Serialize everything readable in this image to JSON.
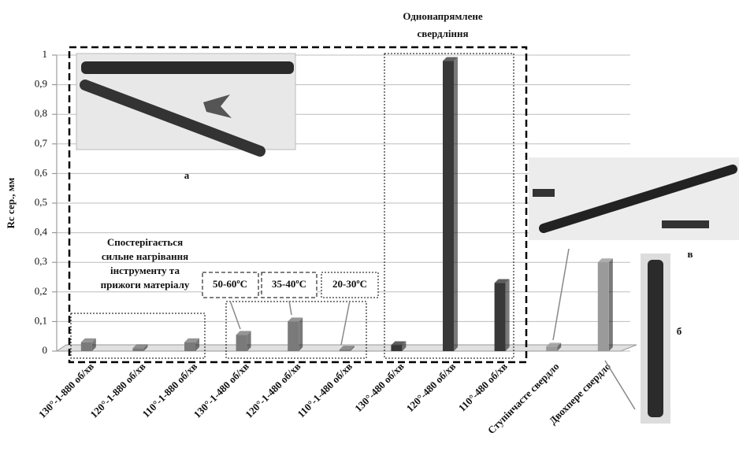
{
  "chart_data": {
    "type": "bar",
    "y_label": "Rc сер., мм",
    "categories": [
      "130°-1-880 об/хв",
      "120°-1-880 об/хв",
      "110°-1-880 об/хв",
      "130°-1-480 об/хв",
      "120°-1-480 об/хв",
      "110°-1-480 об/хв",
      "130°-480 об/хв",
      "120°-480 об/хв",
      "110°-480 об/хв",
      "Ступінчасте свердло",
      "Двохпере свердло"
    ],
    "values": [
      0.03,
      0.01,
      0.03,
      0.055,
      0.1,
      0.005,
      0.02,
      0.98,
      0.23,
      0.015,
      0.3
    ],
    "colors": [
      "#7a7a7a",
      "#7a7a7a",
      "#7a7a7a",
      "#7a7a7a",
      "#7a7a7a",
      "#7a7a7a",
      "#383838",
      "#383838",
      "#383838",
      "#9a9a9a",
      "#9a9a9a"
    ],
    "ylim": [
      0,
      1
    ],
    "yticks": [
      0,
      {
        "value": 0.1,
        "label": "0,1"
      },
      {
        "value": 0.2,
        "label": "0,2"
      },
      {
        "value": 0.3,
        "label": "0,3"
      },
      {
        "value": 0.4,
        "label": "0,4"
      },
      {
        "value": 0.5,
        "label": "0,5"
      },
      {
        "value": 0.6,
        "label": "0,6"
      },
      {
        "value": 0.7,
        "label": "0,7"
      },
      {
        "value": 0.8,
        "label": "0,8"
      },
      {
        "value": 0.9,
        "label": "0,9"
      },
      1
    ],
    "grid": true,
    "annotations": {
      "group_title": [
        "Однонапрямлене",
        "свердління"
      ],
      "heating_note": [
        "Спостерігається",
        "сильне нагрівання",
        "інструменту та",
        "прижоги матеріалу"
      ],
      "temperatures": [
        "50-60ºC",
        "35-40ºC",
        "20-30ºC"
      ],
      "photo_labels": [
        "а",
        "б",
        "в"
      ]
    }
  }
}
